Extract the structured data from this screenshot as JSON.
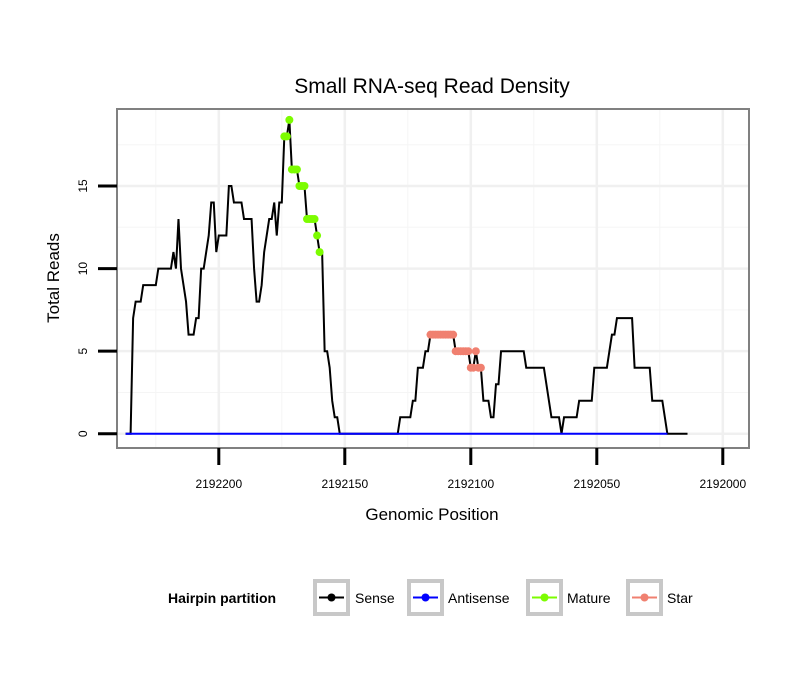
{
  "chart_data": {
    "type": "line",
    "title": "Small RNA-seq Read Density",
    "xlabel": "Genomic Position",
    "ylabel": "Total Reads",
    "xlim": [
      2192240,
      2191990
    ],
    "ylim": [
      -0.8,
      19.6
    ],
    "x_reversed": true,
    "x_ticks": [
      2192200,
      2192150,
      2192100,
      2192050,
      2192000
    ],
    "x_tick_labels": [
      "2192200",
      "2192150",
      "2192100",
      "2192050",
      "2192000"
    ],
    "y_ticks": [
      0,
      5,
      10,
      15
    ],
    "y_tick_labels": [
      "0",
      "5",
      "10",
      "15"
    ],
    "legend": {
      "title": "Hairpin partition",
      "placement": "bottom",
      "entries": [
        {
          "name": "Sense",
          "color": "#000000",
          "key": "sense"
        },
        {
          "name": "Antisense",
          "color": "#0000ff",
          "key": "antisense"
        },
        {
          "name": "Mature",
          "color": "#7cfc00",
          "key": "mature"
        },
        {
          "name": "Star",
          "color": "#f08070",
          "key": "star"
        }
      ]
    },
    "series": [
      {
        "name": "Sense",
        "color": "#000000",
        "style": "line",
        "points": [
          [
            2192237,
            0
          ],
          [
            2192235,
            0
          ],
          [
            2192234,
            7
          ],
          [
            2192233,
            8
          ],
          [
            2192231,
            8
          ],
          [
            2192230,
            9
          ],
          [
            2192225,
            9
          ],
          [
            2192224,
            10
          ],
          [
            2192219,
            10
          ],
          [
            2192218,
            11
          ],
          [
            2192217,
            10
          ],
          [
            2192216,
            13
          ],
          [
            2192215,
            10
          ],
          [
            2192214,
            9
          ],
          [
            2192213,
            8
          ],
          [
            2192212,
            6
          ],
          [
            2192210,
            6
          ],
          [
            2192209,
            7
          ],
          [
            2192208,
            7
          ],
          [
            2192207,
            10
          ],
          [
            2192206,
            10
          ],
          [
            2192205,
            11
          ],
          [
            2192204,
            12
          ],
          [
            2192203,
            14
          ],
          [
            2192202,
            14
          ],
          [
            2192201,
            11
          ],
          [
            2192200,
            12
          ],
          [
            2192197,
            12
          ],
          [
            2192196,
            15
          ],
          [
            2192195,
            15
          ],
          [
            2192194,
            14
          ],
          [
            2192191,
            14
          ],
          [
            2192190,
            13
          ],
          [
            2192187,
            13
          ],
          [
            2192186,
            10
          ],
          [
            2192185,
            8
          ],
          [
            2192184,
            8
          ],
          [
            2192183,
            9
          ],
          [
            2192182,
            11
          ],
          [
            2192181,
            12
          ],
          [
            2192180,
            13
          ],
          [
            2192179,
            13
          ],
          [
            2192178,
            14
          ],
          [
            2192177,
            12
          ],
          [
            2192176,
            14
          ],
          [
            2192175,
            14
          ],
          [
            2192174,
            18
          ],
          [
            2192173,
            18
          ],
          [
            2192172,
            19
          ],
          [
            2192171,
            16
          ],
          [
            2192169,
            16
          ],
          [
            2192168,
            15
          ],
          [
            2192166,
            15
          ],
          [
            2192165,
            13
          ],
          [
            2192162,
            13
          ],
          [
            2192161,
            12
          ],
          [
            2192160,
            11
          ],
          [
            2192159,
            11
          ],
          [
            2192158,
            5
          ],
          [
            2192157,
            5
          ],
          [
            2192156,
            4
          ],
          [
            2192155,
            2
          ],
          [
            2192154,
            1
          ],
          [
            2192153,
            1
          ],
          [
            2192152,
            0
          ],
          [
            2192129,
            0
          ],
          [
            2192128,
            1
          ],
          [
            2192124,
            1
          ],
          [
            2192123,
            2
          ],
          [
            2192122,
            2
          ],
          [
            2192121,
            4
          ],
          [
            2192119,
            4
          ],
          [
            2192118,
            5
          ],
          [
            2192117,
            5
          ],
          [
            2192116,
            6
          ],
          [
            2192107,
            6
          ],
          [
            2192106,
            5
          ],
          [
            2192101,
            5
          ],
          [
            2192100,
            4
          ],
          [
            2192099,
            4
          ],
          [
            2192098,
            5
          ],
          [
            2192097,
            4
          ],
          [
            2192096,
            4
          ],
          [
            2192095,
            2
          ],
          [
            2192093,
            2
          ],
          [
            2192092,
            1
          ],
          [
            2192091,
            1
          ],
          [
            2192090,
            3
          ],
          [
            2192089,
            3
          ],
          [
            2192088,
            5
          ],
          [
            2192079,
            5
          ],
          [
            2192078,
            4
          ],
          [
            2192071,
            4
          ],
          [
            2192070,
            3
          ],
          [
            2192069,
            2
          ],
          [
            2192068,
            1
          ],
          [
            2192065,
            1
          ],
          [
            2192064,
            0
          ],
          [
            2192063,
            1
          ],
          [
            2192058,
            1
          ],
          [
            2192057,
            2
          ],
          [
            2192052,
            2
          ],
          [
            2192051,
            4
          ],
          [
            2192046,
            4
          ],
          [
            2192045,
            5
          ],
          [
            2192044,
            6
          ],
          [
            2192043,
            6
          ],
          [
            2192042,
            7
          ],
          [
            2192036,
            7
          ],
          [
            2192035,
            4
          ],
          [
            2192029,
            4
          ],
          [
            2192028,
            2
          ],
          [
            2192024,
            2
          ],
          [
            2192023,
            1
          ],
          [
            2192022,
            0
          ],
          [
            2192014,
            0
          ]
        ]
      },
      {
        "name": "Antisense",
        "color": "#0000ff",
        "style": "line",
        "points": [
          [
            2192237,
            0
          ],
          [
            2192022,
            0
          ]
        ]
      },
      {
        "name": "Mature",
        "color": "#7cfc00",
        "style": "points",
        "points": [
          [
            2192174,
            18
          ],
          [
            2192173,
            18
          ],
          [
            2192172,
            19
          ],
          [
            2192171,
            16
          ],
          [
            2192170,
            16
          ],
          [
            2192169,
            16
          ],
          [
            2192168,
            15
          ],
          [
            2192167,
            15
          ],
          [
            2192166,
            15
          ],
          [
            2192165,
            13
          ],
          [
            2192164,
            13
          ],
          [
            2192163,
            13
          ],
          [
            2192162,
            13
          ],
          [
            2192161,
            12
          ],
          [
            2192160,
            11
          ]
        ]
      },
      {
        "name": "Star",
        "color": "#f08070",
        "style": "points",
        "points": [
          [
            2192116,
            6
          ],
          [
            2192115,
            6
          ],
          [
            2192114,
            6
          ],
          [
            2192113,
            6
          ],
          [
            2192112,
            6
          ],
          [
            2192111,
            6
          ],
          [
            2192110,
            6
          ],
          [
            2192109,
            6
          ],
          [
            2192108,
            6
          ],
          [
            2192107,
            6
          ],
          [
            2192106,
            5
          ],
          [
            2192105,
            5
          ],
          [
            2192104,
            5
          ],
          [
            2192103,
            5
          ],
          [
            2192102,
            5
          ],
          [
            2192101,
            5
          ],
          [
            2192100,
            4
          ],
          [
            2192099,
            4
          ],
          [
            2192098,
            5
          ],
          [
            2192097,
            4
          ],
          [
            2192096,
            4
          ]
        ]
      }
    ]
  }
}
